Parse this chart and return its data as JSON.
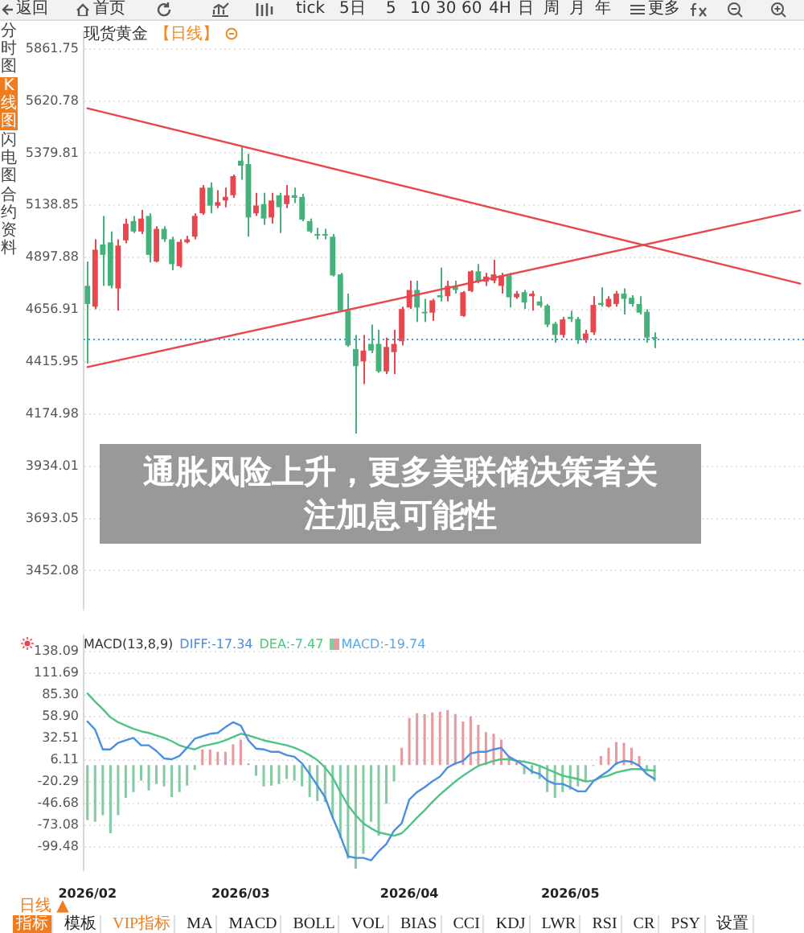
{
  "chart_data": [
    {
      "type": "candlestick",
      "title": "现货黄金",
      "subtitle": "【日线】",
      "categories": [
        "2026/02",
        null,
        null,
        null,
        null,
        null,
        null,
        null,
        null,
        null,
        null,
        null,
        null,
        null,
        null,
        null,
        null,
        null,
        null,
        null,
        "2026/03",
        null,
        null,
        null,
        null,
        null,
        null,
        null,
        null,
        null,
        null,
        null,
        null,
        null,
        null,
        null,
        null,
        null,
        null,
        null,
        null,
        null,
        "2026/04",
        null,
        null,
        null,
        null,
        null,
        null,
        null,
        null,
        null,
        null,
        null,
        null,
        null,
        null,
        null,
        null,
        null,
        null,
        null,
        null,
        "2026/05",
        null,
        null,
        null,
        null,
        null,
        null,
        null,
        null,
        null,
        null,
        null,
        null,
        null,
        null,
        null,
        null,
        null,
        null,
        null,
        null,
        null,
        null,
        null,
        null,
        null,
        null,
        null,
        null,
        null,
        null
      ],
      "series": [
        {
          "ohlc": [
            [
              4767,
              4879,
              4408,
              4683
            ],
            [
              4671,
              4982,
              4659,
              4934
            ],
            [
              4958,
              5090,
              4767,
              4910
            ],
            [
              4968,
              5018,
              4755,
              4767
            ],
            [
              4755,
              4982,
              4652,
              4953
            ],
            [
              4977,
              5078,
              4963,
              5054
            ],
            [
              5066,
              5090,
              5011,
              5018
            ],
            [
              5018,
              5118,
              5006,
              5078
            ],
            [
              5090,
              5102,
              4875,
              4910
            ],
            [
              4879,
              5042,
              4875,
              5030
            ],
            [
              5030,
              5042,
              4970,
              4982
            ],
            [
              4982,
              4994,
              4839,
              4867
            ],
            [
              4858,
              4982,
              4851,
              4970
            ],
            [
              4968,
              4998,
              4963,
              4982
            ],
            [
              4994,
              5102,
              4982,
              5090
            ],
            [
              5102,
              5233,
              5095,
              5221
            ],
            [
              5221,
              5245,
              5102,
              5137
            ],
            [
              5137,
              5209,
              5126,
              5154
            ],
            [
              5161,
              5221,
              5130,
              5178
            ],
            [
              5185,
              5281,
              5173,
              5274
            ],
            [
              5345,
              5408,
              5257,
              5322
            ],
            [
              5329,
              5377,
              4994,
              5083
            ],
            [
              5102,
              5197,
              5090,
              5138
            ],
            [
              5145,
              5197,
              5049,
              5078
            ],
            [
              5083,
              5197,
              5054,
              5161
            ],
            [
              5185,
              5197,
              5011,
              5130
            ],
            [
              5145,
              5233,
              5126,
              5185
            ],
            [
              5185,
              5221,
              5149,
              5173
            ],
            [
              5178,
              5192,
              5066,
              5073
            ],
            [
              5066,
              5078,
              5011,
              5018
            ],
            [
              5006,
              5035,
              4982,
              4999
            ],
            [
              5006,
              5030,
              4982,
              4999
            ],
            [
              4994,
              5006,
              4810,
              4815
            ],
            [
              4820,
              4827,
              4647,
              4652
            ],
            [
              4652,
              4731,
              4485,
              4492
            ],
            [
              4475,
              4540,
              4085,
              4396
            ],
            [
              4418,
              4540,
              4313,
              4468
            ],
            [
              4499,
              4588,
              4456,
              4468
            ],
            [
              4499,
              4564,
              4365,
              4372
            ],
            [
              4372,
              4528,
              4360,
              4485
            ],
            [
              4461,
              4564,
              4360,
              4499
            ],
            [
              4511,
              4671,
              4492,
              4660
            ],
            [
              4667,
              4791,
              4660,
              4748
            ],
            [
              4748,
              4791,
              4600,
              4667
            ],
            [
              4647,
              4707,
              4600,
              4640
            ],
            [
              4643,
              4707,
              4605,
              4700
            ],
            [
              4724,
              4851,
              4695,
              4714
            ],
            [
              4719,
              4791,
              4695,
              4767
            ],
            [
              4767,
              4791,
              4731,
              4748
            ],
            [
              4628,
              4743,
              4624,
              4738
            ],
            [
              4743,
              4839,
              4738,
              4834
            ],
            [
              4834,
              4868,
              4779,
              4786
            ],
            [
              4786,
              4827,
              4767,
              4810
            ],
            [
              4791,
              4887,
              4779,
              4820
            ],
            [
              4767,
              4827,
              4731,
              4815
            ],
            [
              4815,
              4827,
              4667,
              4714
            ],
            [
              4714,
              4743,
              4707,
              4731
            ],
            [
              4738,
              4748,
              4660,
              4690
            ],
            [
              4719,
              4743,
              4652,
              4731
            ],
            [
              4695,
              4719,
              4667,
              4676
            ],
            [
              4676,
              4683,
              4576,
              4588
            ],
            [
              4592,
              4600,
              4504,
              4540
            ],
            [
              4540,
              4624,
              4528,
              4612
            ],
            [
              4624,
              4652,
              4600,
              4614
            ],
            [
              4614,
              4624,
              4499,
              4516
            ],
            [
              4516,
              4564,
              4504,
              4547
            ],
            [
              4552,
              4719,
              4540,
              4679
            ],
            [
              4688,
              4760,
              4671,
              4679
            ],
            [
              4671,
              4719,
              4667,
              4707
            ],
            [
              4683,
              4743,
              4671,
              4731
            ],
            [
              4731,
              4755,
              4635,
              4707
            ],
            [
              4712,
              4724,
              4671,
              4683
            ],
            [
              4683,
              4719,
              4635,
              4643
            ],
            [
              4647,
              4659,
              4504,
              4528
            ],
            [
              4528,
              4552,
              4480,
              4523
            ],
            null,
            null,
            null,
            null,
            null,
            null,
            null,
            null,
            null,
            null,
            null,
            null,
            null,
            null,
            null,
            null,
            null,
            null,
            null
          ],
          "colors": [
            "#45b27c",
            "#e8474f",
            "#45b27c",
            "#45b27c",
            "#e8474f",
            "#e8474f",
            "#45b27c",
            "#e8474f",
            "#45b27c",
            "#e8474f",
            "#45b27c",
            "#45b27c",
            "#e8474f",
            "#e8474f",
            "#e8474f",
            "#e8474f",
            "#45b27c",
            "#e8474f",
            "#e8474f",
            "#e8474f",
            "#45b27c",
            "#45b27c",
            "#e8474f",
            "#45b27c",
            "#e8474f",
            "#45b27c",
            "#e8474f",
            "#45b27c",
            "#45b27c",
            "#45b27c",
            "#45b27c",
            "#45b27c",
            "#45b27c",
            "#45b27c",
            "#45b27c",
            "#45b27c",
            "#e8474f",
            "#45b27c",
            "#45b27c",
            "#e8474f",
            "#e8474f",
            "#e8474f",
            "#e8474f",
            "#45b27c",
            "#45b27c",
            "#e8474f",
            "#45b27c",
            "#e8474f",
            "#45b27c",
            "#e8474f",
            "#e8474f",
            "#45b27c",
            "#e8474f",
            "#e8474f",
            "#e8474f",
            "#45b27c",
            "#e8474f",
            "#45b27c",
            "#e8474f",
            "#45b27c",
            "#45b27c",
            "#45b27c",
            "#e8474f",
            "#45b27c",
            "#45b27c",
            "#e8474f",
            "#e8474f",
            "#45b27c",
            "#e8474f",
            "#e8474f",
            "#45b27c",
            "#45b27c",
            "#45b27c",
            "#45b27c",
            "#45b27c",
            null,
            null,
            null,
            null,
            null,
            null,
            null,
            null,
            null,
            null,
            null,
            null,
            null,
            null,
            null,
            null,
            null,
            null,
            null
          ]
        },
        {
          "type": "line",
          "color": "#e8474f",
          "values": [
            5587,
            null,
            null,
            null,
            null,
            null,
            null,
            null,
            null,
            null,
            null,
            null,
            null,
            null,
            null,
            null,
            null,
            null,
            null,
            null,
            null,
            null,
            null,
            null,
            null,
            null,
            null,
            null,
            null,
            null,
            null,
            null,
            null,
            null,
            null,
            null,
            null,
            null,
            null,
            null,
            null,
            null,
            null,
            null,
            null,
            null,
            null,
            null,
            null,
            null,
            null,
            null,
            null,
            null,
            null,
            null,
            null,
            null,
            null,
            null,
            null,
            null,
            null,
            null,
            null,
            null,
            null,
            null,
            null,
            null,
            null,
            null,
            null,
            null,
            null,
            null,
            null,
            null,
            null,
            null,
            null,
            null,
            null,
            null,
            null,
            null,
            null,
            null,
            null,
            null,
            null,
            null,
            null,
            4777
          ]
        },
        {
          "type": "line",
          "color": "#e8474f",
          "values": [
            4392,
            null,
            null,
            null,
            null,
            null,
            null,
            null,
            null,
            null,
            null,
            null,
            null,
            null,
            null,
            null,
            null,
            null,
            null,
            null,
            null,
            null,
            null,
            null,
            null,
            null,
            null,
            null,
            null,
            null,
            null,
            null,
            null,
            null,
            null,
            null,
            null,
            null,
            null,
            null,
            null,
            null,
            null,
            null,
            null,
            null,
            null,
            null,
            null,
            null,
            null,
            null,
            null,
            null,
            null,
            null,
            null,
            null,
            null,
            null,
            null,
            null,
            null,
            null,
            null,
            null,
            null,
            null,
            null,
            null,
            null,
            null,
            null,
            null,
            null,
            null,
            null,
            null,
            null,
            null,
            null,
            null,
            null,
            null,
            null,
            null,
            null,
            null,
            null,
            null,
            null,
            null,
            null,
            5115
          ]
        }
      ],
      "ylim": [
        3270,
        5940
      ],
      "yticks": [
        3452.08,
        3693.05,
        3934.01,
        4174.98,
        4415.95,
        4656.91,
        4897.88,
        5138.85,
        5379.81,
        5620.78,
        5861.75
      ],
      "grid": "y",
      "tick_labels": "y",
      "ref_lines": [
        {
          "axis": "y",
          "value": 4520,
          "color": "#3f9fe0",
          "line_style": "dotted"
        }
      ],
      "annotations": [
        "通胀风险上升，更多美联储决策者关注加息可能性",
        "返回",
        "首页",
        "tick",
        "5日",
        "5",
        "10",
        "30",
        "60",
        "4H",
        "日",
        "周",
        "月",
        "年",
        "更多",
        "分时图",
        "K线图",
        "闪电图",
        "合约资料"
      ]
    },
    {
      "type": "bar",
      "title": "MACD(13,8,9)",
      "categories": [
        "2026/02",
        null,
        null,
        null,
        null,
        null,
        null,
        null,
        null,
        null,
        null,
        null,
        null,
        null,
        null,
        null,
        null,
        null,
        null,
        null,
        "2026/03",
        null,
        null,
        null,
        null,
        null,
        null,
        null,
        null,
        null,
        null,
        null,
        null,
        null,
        null,
        null,
        null,
        null,
        null,
        null,
        null,
        null,
        "2026/04",
        null,
        null,
        null,
        null,
        null,
        null,
        null,
        null,
        null,
        null,
        null,
        null,
        null,
        null,
        null,
        null,
        null,
        null,
        null,
        null,
        "2026/05",
        null,
        null,
        null,
        null,
        null,
        null,
        null,
        null,
        null,
        null,
        null,
        null,
        null,
        null,
        null,
        null,
        null,
        null,
        null,
        null,
        null,
        null,
        null,
        null,
        null,
        null,
        null,
        null,
        null,
        null
      ],
      "series": [
        {
          "name": "DIFF:-17.34",
          "type": "line",
          "color": "#4a8fe0",
          "values": [
            53,
            43,
            19,
            19,
            27,
            30,
            33,
            24,
            24,
            17,
            8,
            7,
            11,
            21,
            32,
            35,
            38,
            39,
            46,
            52,
            48,
            30,
            20,
            19,
            16,
            16,
            12,
            10,
            2,
            -11,
            -25,
            -39,
            -64,
            -86,
            -111,
            -113,
            -113,
            -116,
            -105,
            -96,
            -80,
            -71,
            -42,
            -33,
            -27,
            -20,
            -14,
            -3,
            2,
            5,
            14,
            16,
            16,
            19,
            21,
            10,
            5,
            -1,
            -8,
            -11,
            -19,
            -23,
            -23,
            -27,
            -32,
            -32,
            -20,
            -13,
            -7,
            2,
            5,
            4,
            -1,
            -11,
            -17,
            null,
            null,
            null,
            null,
            null,
            null,
            null,
            null,
            null,
            null,
            null,
            null,
            null,
            null,
            null,
            null,
            null,
            null,
            null
          ]
        },
        {
          "name": "DEA:-7.47",
          "type": "line",
          "color": "#4fc486",
          "values": [
            87,
            77,
            68,
            58,
            52,
            48,
            44,
            41,
            39,
            36,
            33,
            29,
            24,
            21,
            19,
            23,
            25,
            27,
            30,
            34,
            38,
            36,
            33,
            30,
            28,
            26,
            24,
            21,
            17,
            12,
            6,
            -3,
            -15,
            -33,
            -49,
            -61,
            -71,
            -77,
            -82,
            -84,
            -86,
            -83,
            -74,
            -64,
            -55,
            -45,
            -36,
            -28,
            -20,
            -13,
            -7,
            -1,
            2,
            5,
            7,
            7,
            5,
            4,
            2,
            -1,
            -5,
            -9,
            -13,
            -15,
            -17,
            -20,
            -19,
            -15,
            -13,
            -9,
            -7,
            -5,
            -5,
            -6,
            -7,
            null,
            null,
            null,
            null,
            null,
            null,
            null,
            null,
            null,
            null,
            null,
            null,
            null,
            null,
            null,
            null,
            null,
            null,
            null
          ]
        },
        {
          "name": "MACD:-19.74",
          "color": "#5aa8e8",
          "values": [
            -67,
            -69,
            -61,
            -83,
            -61,
            -40,
            -33,
            -19,
            -31,
            -23,
            -26,
            -39,
            -33,
            -25,
            -6,
            19,
            19,
            16,
            16,
            25,
            31,
            2,
            -13,
            -26,
            -25,
            -23,
            -17,
            -19,
            -26,
            -39,
            -44,
            -45,
            -64,
            -89,
            -114,
            -126,
            -108,
            -69,
            -86,
            -47,
            -20,
            21,
            57,
            63,
            62,
            64,
            65,
            67,
            62,
            53,
            59,
            49,
            40,
            38,
            31,
            10,
            4,
            -11,
            -11,
            -17,
            -33,
            -40,
            -33,
            -30,
            -26,
            -20,
            -1,
            11,
            21,
            28,
            27,
            21,
            11,
            -8,
            -20,
            null,
            null,
            null,
            null,
            null,
            null,
            null,
            null,
            null,
            null,
            null,
            null,
            null,
            null,
            null,
            null,
            null,
            null,
            null
          ],
          "colors": [
            "#84cba2",
            "#84cba2",
            "#84cba2",
            "#84cba2",
            "#84cba2",
            "#84cba2",
            "#84cba2",
            "#84cba2",
            "#84cba2",
            "#84cba2",
            "#84cba2",
            "#84cba2",
            "#84cba2",
            "#84cba2",
            "#84cba2",
            "#e79a9d",
            "#e79a9d",
            "#e79a9d",
            "#e79a9d",
            "#e79a9d",
            "#e79a9d",
            "#e79a9d",
            "#84cba2",
            "#84cba2",
            "#84cba2",
            "#84cba2",
            "#84cba2",
            "#84cba2",
            "#84cba2",
            "#84cba2",
            "#84cba2",
            "#84cba2",
            "#84cba2",
            "#84cba2",
            "#84cba2",
            "#84cba2",
            "#84cba2",
            "#84cba2",
            "#84cba2",
            "#84cba2",
            "#84cba2",
            "#e79a9d",
            "#e79a9d",
            "#e79a9d",
            "#e79a9d",
            "#e79a9d",
            "#e79a9d",
            "#e79a9d",
            "#e79a9d",
            "#e79a9d",
            "#e79a9d",
            "#e79a9d",
            "#e79a9d",
            "#e79a9d",
            "#e79a9d",
            "#e79a9d",
            "#e79a9d",
            "#84cba2",
            "#84cba2",
            "#84cba2",
            "#84cba2",
            "#84cba2",
            "#84cba2",
            "#84cba2",
            "#84cba2",
            "#84cba2",
            "#84cba2",
            "#e79a9d",
            "#e79a9d",
            "#e79a9d",
            "#e79a9d",
            "#e79a9d",
            "#e79a9d",
            "#84cba2",
            "#84cba2",
            null,
            null,
            null,
            null,
            null,
            null,
            null,
            null,
            null,
            null,
            null,
            null,
            null,
            null,
            null,
            null,
            null,
            null,
            null
          ]
        }
      ],
      "ylim": [
        -128,
        158
      ],
      "yticks": [
        -99.48,
        -73.08,
        -46.68,
        -20.29,
        6.11,
        32.51,
        {
          "value": 58.9,
          "label": "58.90"
        },
        {
          "value": 85.3,
          "label": "85.30"
        },
        111.69,
        138.09
      ],
      "grid": "y",
      "legend": "top left",
      "annotations": [
        "日线 ▲",
        "指标",
        "模板",
        "VIP指标",
        "MA",
        "MACD",
        "BOLL",
        "VOL",
        "BIAS",
        "CCI",
        "KDJ",
        "LWR",
        "RSI",
        "CR",
        "PSY",
        "设置"
      ]
    }
  ]
}
